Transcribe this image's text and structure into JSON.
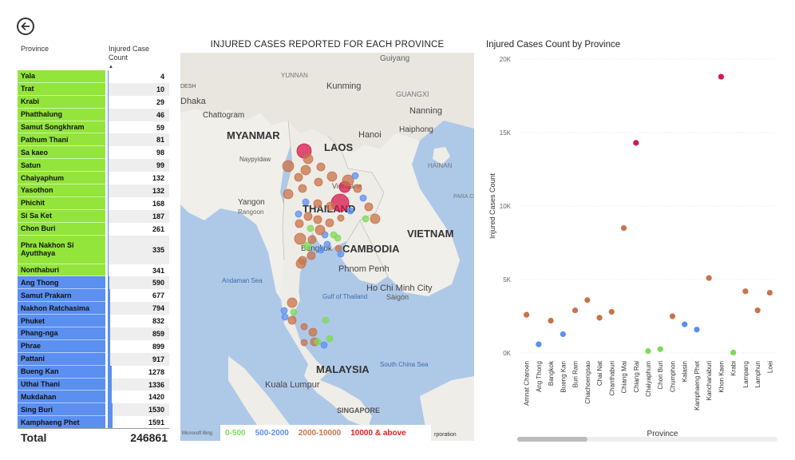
{
  "back_button": {
    "icon": "back-arrow-icon"
  },
  "table": {
    "col_province": "Province",
    "col_count_line1": "Injured Case",
    "col_count_line2": "Count",
    "rows": [
      {
        "province": "Yala",
        "count": "4",
        "value": 4,
        "band": "0-500"
      },
      {
        "province": "Trat",
        "count": "10",
        "value": 10,
        "band": "0-500"
      },
      {
        "province": "Krabi",
        "count": "29",
        "value": 29,
        "band": "0-500"
      },
      {
        "province": "Phatthalung",
        "count": "46",
        "value": 46,
        "band": "0-500"
      },
      {
        "province": "Samut Songkhram",
        "count": "59",
        "value": 59,
        "band": "0-500"
      },
      {
        "province": "Pathum Thani",
        "count": "81",
        "value": 81,
        "band": "0-500"
      },
      {
        "province": "Sa kaeo",
        "count": "98",
        "value": 98,
        "band": "0-500"
      },
      {
        "province": "Satun",
        "count": "99",
        "value": 99,
        "band": "0-500"
      },
      {
        "province": "Chaiyaphum",
        "count": "132",
        "value": 132,
        "band": "0-500"
      },
      {
        "province": "Yasothon",
        "count": "132",
        "value": 132,
        "band": "0-500"
      },
      {
        "province": "Phichit",
        "count": "168",
        "value": 168,
        "band": "0-500"
      },
      {
        "province": "Si Sa Ket",
        "count": "187",
        "value": 187,
        "band": "0-500"
      },
      {
        "province": "Chon Buri",
        "count": "261",
        "value": 261,
        "band": "0-500"
      },
      {
        "province": "Phra Nakhon Si Ayutthaya",
        "count": "335",
        "value": 335,
        "band": "0-500"
      },
      {
        "province": "Nonthaburi",
        "count": "341",
        "value": 341,
        "band": "0-500"
      },
      {
        "province": "Ang Thong",
        "count": "590",
        "value": 590,
        "band": "500-2000"
      },
      {
        "province": "Samut Prakarn",
        "count": "677",
        "value": 677,
        "band": "500-2000"
      },
      {
        "province": "Nakhon Ratchasima",
        "count": "794",
        "value": 794,
        "band": "500-2000"
      },
      {
        "province": "Phuket",
        "count": "832",
        "value": 832,
        "band": "500-2000"
      },
      {
        "province": "Phang-nga",
        "count": "859",
        "value": 859,
        "band": "500-2000"
      },
      {
        "province": "Phrae",
        "count": "899",
        "value": 899,
        "band": "500-2000"
      },
      {
        "province": "Pattani",
        "count": "917",
        "value": 917,
        "band": "500-2000"
      },
      {
        "province": "Bueng Kan",
        "count": "1278",
        "value": 1278,
        "band": "500-2000"
      },
      {
        "province": "Uthai Thani",
        "count": "1336",
        "value": 1336,
        "band": "500-2000"
      },
      {
        "province": "Mukdahan",
        "count": "1420",
        "value": 1420,
        "band": "500-2000"
      },
      {
        "province": "Sing Buri",
        "count": "1530",
        "value": 1530,
        "band": "500-2000"
      },
      {
        "province": "Kamphaeng Phet",
        "count": "1591",
        "value": 1591,
        "band": "500-2000"
      }
    ],
    "total_label": "Total",
    "total_value": "246861"
  },
  "map": {
    "title": "INJURED CASES REPORTED FOR EACH PROVINCE",
    "labels": {
      "myanmar": "MYANMAR",
      "laos": "LAOS",
      "thailand": "THAILAND",
      "cambodia": "CAMBODIA",
      "vietnam": "VIETNAM",
      "malaysia": "MALAYSIA",
      "singapore": "SINGAPORE",
      "yunnan": "YUNNAN",
      "kunming": "Kunming",
      "guiyang": "Guiyang",
      "guangxi": "GUANGXI",
      "nanning": "Nanning",
      "hanoi": "Hanoi",
      "haiphong": "Haiphong",
      "hainan": "HAINAN",
      "vientiane": "Vientiane",
      "bangkok": "Bangkok",
      "phnom_penh": "Phnom Penh",
      "ho_chi_minh": "Ho Chi Minh City",
      "saigon": "Sàigòn",
      "yangon": "Yangon",
      "rangoon": "Rangoon",
      "naypyidaw": "Naypyidaw",
      "chattogram": "Chattogram",
      "dhaka": "Dhaka",
      "desh": "DESH",
      "andaman_sea": "Andaman Sea",
      "gulf_of_thailand": "Gulf of Thailand",
      "south_china_sea": "South China Sea",
      "kuala_lumpur": "Kuala Lumpur",
      "paracel": "PARA CEL",
      "bing": "Microsoft Bing",
      "corporation": "rporation"
    },
    "legend": [
      {
        "label": "0-500",
        "color": "#7ed957"
      },
      {
        "label": "500-2000",
        "color": "#5b8ff0"
      },
      {
        "label": "2000-10000",
        "color": "#c8734a"
      },
      {
        "label": "10000 & above",
        "color": "#e02020"
      }
    ]
  },
  "chart_data": {
    "type": "scatter",
    "title": "Injured Cases Count by Province",
    "xlabel": "Province",
    "ylabel": "Injured Cases Count",
    "ylim": [
      0,
      20000
    ],
    "yticks": [
      "0K",
      "5K",
      "10K",
      "15K",
      "20K"
    ],
    "grid": true,
    "categories": [
      "Amnat Charoen",
      "Ang Thong",
      "Bangkok",
      "Bueng Kan",
      "Buri Ram",
      "Chachoengsao",
      "Chai Nat",
      "Chanthaburi",
      "Chiang Mai",
      "Chiang Rai",
      "Chaiyaphum",
      "Chon Buri",
      "Chumphon",
      "Kalasin",
      "Kamphaeng Phet",
      "Kanchanaburi",
      "Khon Kaen",
      "Krabi",
      "Lampang",
      "Lamphun",
      "Loei"
    ],
    "values": [
      2600,
      590,
      2200,
      1278,
      2900,
      3600,
      2400,
      2800,
      8500,
      14300,
      132,
      261,
      2500,
      1950,
      1591,
      5100,
      18800,
      29,
      4200,
      2900,
      4100
    ],
    "colors": [
      "#c8734a",
      "#5b8ff0",
      "#c8734a",
      "#5b8ff0",
      "#c8734a",
      "#c8734a",
      "#c8734a",
      "#c8734a",
      "#c8734a",
      "#d6184a",
      "#7ed957",
      "#7ed957",
      "#c8734a",
      "#5b8ff0",
      "#5b8ff0",
      "#c8734a",
      "#d6184a",
      "#7ed957",
      "#c8734a",
      "#c8734a",
      "#c8734a"
    ]
  }
}
